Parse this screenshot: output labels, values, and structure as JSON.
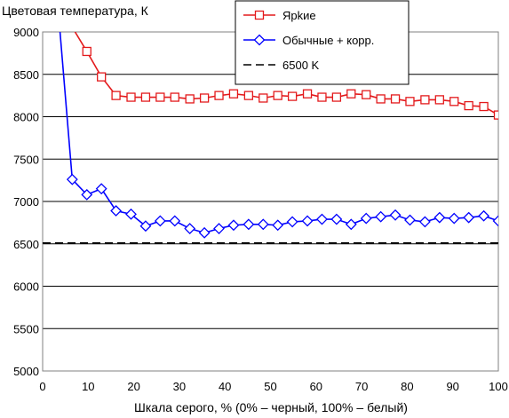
{
  "chart_data": {
    "type": "line",
    "ylabel": "Цветовая температура, К",
    "xlabel": "Шкала серого, % (0% – черный, 100% – белый)",
    "xlim": [
      0,
      100
    ],
    "ylim": [
      5000,
      9000
    ],
    "xticks": [
      0,
      10,
      20,
      30,
      40,
      50,
      60,
      70,
      80,
      90,
      100
    ],
    "yticks": [
      5000,
      5500,
      6000,
      6500,
      7000,
      7500,
      8000,
      8500,
      9000
    ],
    "grid": "horizontal",
    "legend_position": "top-right",
    "series": [
      {
        "name": "Ярkие",
        "color": "#e31a1c",
        "marker": "square",
        "x": [
          3.2,
          9.7,
          12.9,
          16.1,
          19.4,
          22.6,
          25.8,
          29.0,
          32.3,
          35.5,
          38.7,
          41.9,
          45.2,
          48.4,
          51.6,
          54.8,
          58.1,
          61.3,
          64.5,
          67.7,
          71.0,
          74.2,
          77.4,
          80.6,
          83.9,
          87.1,
          90.3,
          93.5,
          96.8,
          100
        ],
        "y": [
          9350,
          8770,
          8470,
          8250,
          8230,
          8230,
          8230,
          8230,
          8210,
          8220,
          8250,
          8270,
          8250,
          8220,
          8250,
          8240,
          8270,
          8230,
          8230,
          8270,
          8260,
          8210,
          8210,
          8180,
          8200,
          8200,
          8180,
          8130,
          8120,
          8020
        ]
      },
      {
        "name": "Обычные + корр.",
        "color": "#0000ff",
        "marker": "diamond",
        "x": [
          3.2,
          6.5,
          9.7,
          12.9,
          16.1,
          19.4,
          22.6,
          25.8,
          29.0,
          32.3,
          35.5,
          38.7,
          41.9,
          45.2,
          48.4,
          51.6,
          54.8,
          58.1,
          61.3,
          64.5,
          67.7,
          71.0,
          74.2,
          77.4,
          80.6,
          83.9,
          87.1,
          90.3,
          93.5,
          96.8,
          100
        ],
        "y": [
          9400,
          7260,
          7080,
          7150,
          6890,
          6850,
          6710,
          6770,
          6770,
          6680,
          6630,
          6680,
          6720,
          6730,
          6730,
          6720,
          6760,
          6770,
          6790,
          6790,
          6730,
          6800,
          6820,
          6840,
          6780,
          6760,
          6810,
          6800,
          6810,
          6830,
          6770
        ]
      },
      {
        "name": "6500 K",
        "color": "#000000",
        "marker": "none",
        "dashed": true,
        "x": [
          0,
          100
        ],
        "y": [
          6510,
          6510
        ]
      }
    ]
  }
}
